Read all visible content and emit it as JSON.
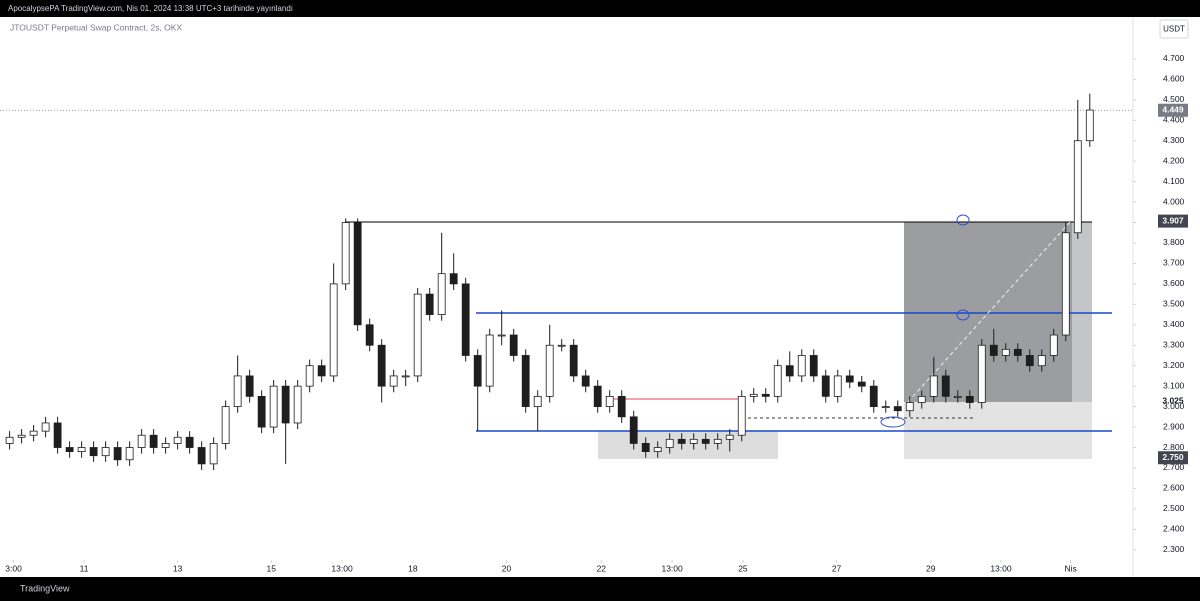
{
  "chart_data": {
    "type": "candlestick",
    "header": "ApocalypsePA TradingView.com, Nis 01, 2024 13:38 UTC+3 tarihinde yayınlandı",
    "title": "JTOUSDT Perpetual Swap Contract, 2s, OKX",
    "currency": "USDT",
    "footer": "TradingView",
    "up_color": "#ffffff",
    "down_color": "#1e1e1e",
    "x": [
      0,
      1,
      2,
      3,
      4,
      5,
      6,
      7,
      8,
      9,
      10,
      11,
      12,
      13,
      14,
      15,
      16,
      17,
      18,
      19,
      20,
      21,
      22,
      23,
      24,
      25,
      26,
      27,
      28,
      29,
      30,
      31,
      32,
      33,
      34,
      35,
      36,
      37,
      38,
      39,
      40,
      41,
      42,
      43,
      44,
      45,
      46,
      47,
      48,
      49,
      50,
      51,
      52,
      53,
      54,
      55,
      56,
      57,
      58,
      59,
      60,
      61,
      62,
      63,
      64,
      65,
      66,
      67,
      68,
      69,
      70,
      71,
      72,
      73,
      74,
      75,
      76,
      77,
      78,
      79,
      80,
      81,
      82,
      83,
      84,
      85,
      86,
      87,
      88,
      89,
      90
    ],
    "open": [
      2.82,
      2.85,
      2.86,
      2.88,
      2.92,
      2.8,
      2.78,
      2.8,
      2.76,
      2.8,
      2.74,
      2.8,
      2.86,
      2.8,
      2.82,
      2.85,
      2.8,
      2.72,
      2.82,
      3.0,
      3.15,
      3.05,
      2.9,
      3.1,
      2.92,
      3.1,
      3.2,
      3.15,
      3.6,
      3.9,
      3.4,
      3.3,
      3.1,
      3.15,
      3.15,
      3.55,
      3.45,
      3.65,
      3.6,
      3.25,
      3.1,
      3.35,
      3.35,
      3.25,
      3.0,
      3.05,
      3.3,
      3.3,
      3.15,
      3.1,
      3.0,
      3.05,
      2.95,
      2.82,
      2.78,
      2.8,
      2.84,
      2.82,
      2.84,
      2.82,
      2.84,
      2.86,
      3.05,
      3.06,
      3.05,
      3.2,
      3.15,
      3.25,
      3.15,
      3.05,
      3.15,
      3.12,
      3.1,
      3.0,
      3.0,
      2.98,
      3.02,
      3.05,
      3.15,
      3.05,
      3.05,
      3.02,
      3.3,
      3.25,
      3.28,
      3.25,
      3.2,
      3.25,
      3.35,
      3.85,
      4.3
    ],
    "high": [
      2.88,
      2.89,
      2.91,
      2.95,
      2.95,
      2.83,
      2.83,
      2.83,
      2.83,
      2.83,
      2.83,
      2.89,
      2.89,
      2.85,
      2.88,
      2.88,
      2.83,
      2.85,
      3.03,
      3.25,
      3.18,
      3.08,
      3.13,
      3.13,
      3.13,
      3.23,
      3.23,
      3.7,
      3.92,
      3.92,
      3.43,
      3.33,
      3.18,
      3.18,
      3.58,
      3.58,
      3.85,
      3.75,
      3.63,
      3.28,
      3.38,
      3.47,
      3.38,
      3.28,
      3.08,
      3.4,
      3.33,
      3.33,
      3.18,
      3.13,
      3.08,
      3.08,
      2.98,
      2.85,
      2.83,
      2.87,
      2.87,
      2.87,
      2.87,
      2.87,
      2.89,
      3.08,
      3.09,
      3.09,
      3.23,
      3.27,
      3.28,
      3.28,
      3.18,
      3.18,
      3.18,
      3.15,
      3.13,
      3.03,
      3.03,
      3.05,
      3.08,
      3.24,
      3.18,
      3.08,
      3.08,
      3.33,
      3.38,
      3.31,
      3.31,
      3.28,
      3.28,
      3.38,
      3.9,
      4.5,
      4.53
    ],
    "low": [
      2.79,
      2.82,
      2.83,
      2.85,
      2.77,
      2.75,
      2.75,
      2.73,
      2.73,
      2.71,
      2.71,
      2.77,
      2.77,
      2.77,
      2.79,
      2.77,
      2.69,
      2.69,
      2.79,
      2.97,
      3.02,
      2.87,
      2.87,
      2.72,
      2.89,
      3.07,
      3.12,
      3.12,
      3.57,
      3.37,
      3.27,
      3.02,
      3.07,
      3.1,
      3.12,
      3.42,
      3.42,
      3.57,
      3.22,
      2.88,
      3.07,
      3.3,
      3.22,
      2.97,
      2.88,
      3.02,
      3.27,
      3.12,
      3.07,
      2.97,
      2.97,
      2.92,
      2.79,
      2.75,
      2.75,
      2.77,
      2.79,
      2.79,
      2.79,
      2.79,
      2.78,
      2.83,
      3.02,
      3.02,
      3.02,
      3.12,
      3.12,
      3.12,
      3.02,
      3.02,
      3.09,
      3.07,
      2.97,
      2.97,
      2.95,
      2.95,
      2.99,
      3.02,
      3.02,
      3.02,
      2.99,
      2.99,
      3.22,
      3.22,
      3.22,
      3.17,
      3.17,
      3.22,
      3.32,
      3.82,
      4.27
    ],
    "close": [
      2.85,
      2.86,
      2.88,
      2.92,
      2.8,
      2.78,
      2.8,
      2.76,
      2.8,
      2.74,
      2.8,
      2.86,
      2.8,
      2.82,
      2.85,
      2.8,
      2.72,
      2.82,
      3.0,
      3.15,
      3.05,
      2.9,
      3.1,
      2.92,
      3.1,
      3.2,
      3.15,
      3.6,
      3.9,
      3.4,
      3.3,
      3.1,
      3.15,
      3.15,
      3.55,
      3.45,
      3.65,
      3.6,
      3.25,
      3.1,
      3.35,
      3.35,
      3.25,
      3.0,
      3.05,
      3.3,
      3.3,
      3.15,
      3.1,
      3.0,
      3.05,
      2.95,
      2.82,
      2.78,
      2.8,
      2.84,
      2.82,
      2.84,
      2.82,
      2.84,
      2.86,
      3.05,
      3.06,
      3.05,
      3.2,
      3.15,
      3.25,
      3.15,
      3.05,
      3.15,
      3.12,
      3.1,
      3.0,
      3.0,
      2.98,
      3.02,
      3.05,
      3.15,
      3.05,
      3.05,
      3.02,
      3.3,
      3.25,
      3.28,
      3.25,
      3.2,
      3.25,
      3.35,
      3.85,
      4.3,
      4.45
    ],
    "xlim": [
      -0.8,
      93.6
    ],
    "xticks": [
      {
        "value": 0.33,
        "label": "3:00"
      },
      {
        "value": 6.2,
        "label": "11"
      },
      {
        "value": 14,
        "label": "13"
      },
      {
        "value": 21.8,
        "label": "15"
      },
      {
        "value": 27.7,
        "label": "13:00"
      },
      {
        "value": 33.6,
        "label": "18"
      },
      {
        "value": 41.4,
        "label": "20"
      },
      {
        "value": 49.3,
        "label": "22"
      },
      {
        "value": 55.2,
        "label": "13:00"
      },
      {
        "value": 61.1,
        "label": "25"
      },
      {
        "value": 68.9,
        "label": "27"
      },
      {
        "value": 76.75,
        "label": "29"
      },
      {
        "value": 82.6,
        "label": "13:00"
      },
      {
        "value": 88.4,
        "label": "Nis"
      }
    ],
    "ylim": [
      2.25,
      4.9
    ],
    "yticks": [
      {
        "value": 2.3,
        "label": "2.300"
      },
      {
        "value": 2.4,
        "label": "2.400"
      },
      {
        "value": 2.5,
        "label": "2.500"
      },
      {
        "value": 2.6,
        "label": "2.600"
      },
      {
        "value": 2.7,
        "label": "2.700"
      },
      {
        "value": 2.8,
        "label": "2.800"
      },
      {
        "value": 2.9,
        "label": "2.900"
      },
      {
        "value": 3.0,
        "label": "3.000"
      },
      {
        "value": 3.1,
        "label": "3.100"
      },
      {
        "value": 3.2,
        "label": "3.200"
      },
      {
        "value": 3.3,
        "label": "3.300"
      },
      {
        "value": 3.4,
        "label": "3.400"
      },
      {
        "value": 3.5,
        "label": "3.500"
      },
      {
        "value": 3.6,
        "label": "3.600"
      },
      {
        "value": 3.7,
        "label": "3.700"
      },
      {
        "value": 3.8,
        "label": "3.800"
      },
      {
        "value": 3.9,
        "label": "3.900"
      },
      {
        "value": 4.0,
        "label": "4.000"
      },
      {
        "value": 4.1,
        "label": "4.100"
      },
      {
        "value": 4.2,
        "label": "4.200"
      },
      {
        "value": 4.3,
        "label": "4.300"
      },
      {
        "value": 4.4,
        "label": "4.400"
      },
      {
        "value": 4.5,
        "label": "4.500"
      },
      {
        "value": 4.6,
        "label": "4.600"
      },
      {
        "value": 4.7,
        "label": "4.700"
      }
    ],
    "grid": false,
    "price_labels": [
      4.449,
      3.907,
      3.025,
      {
        "value": 2.75,
        "label": "2.750"
      }
    ]
  }
}
